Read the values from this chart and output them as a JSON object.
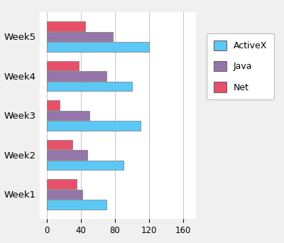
{
  "categories": [
    "Week1",
    "Week2",
    "Week3",
    "Week4",
    "Week5"
  ],
  "series": {
    "ActiveX": [
      70,
      90,
      110,
      100,
      120
    ],
    "Java": [
      42,
      48,
      50,
      70,
      78
    ],
    "Net": [
      35,
      30,
      15,
      38,
      45
    ]
  },
  "colors": {
    "ActiveX": "#5BC8F5",
    "Java": "#9575AA",
    "Net": "#E8506A"
  },
  "xlim": [
    -8,
    175
  ],
  "xticks": [
    0,
    40,
    80,
    120,
    160
  ],
  "legend_labels": [
    "ActiveX",
    "Java",
    "Net"
  ],
  "background_color": "#f0f0f0",
  "plot_background": "#ffffff",
  "grid_color": "#c8c8d8",
  "bar_height": 0.26,
  "legend_border_color": "#bbbbbb"
}
